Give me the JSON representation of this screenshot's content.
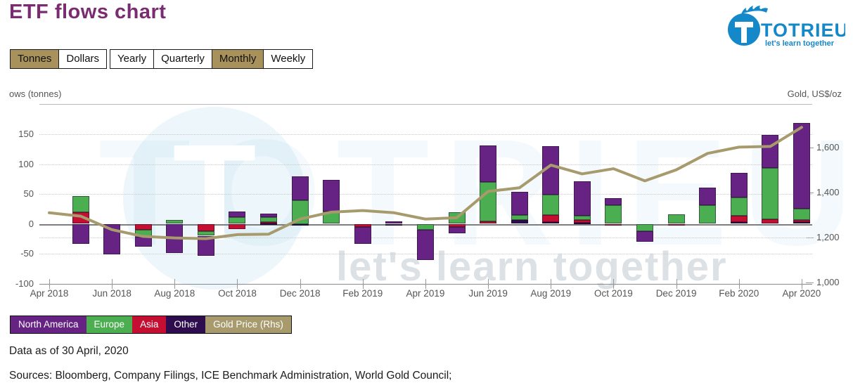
{
  "header": {
    "title": "ETF flows chart"
  },
  "logo": {
    "brand": "TOTRIEU",
    "tagline": "let's learn together",
    "color": "#1488c8"
  },
  "controls": {
    "selected_bg": "#a8915a",
    "unit_toggle": [
      {
        "label": "Tonnes",
        "selected": true
      },
      {
        "label": "Dollars",
        "selected": false
      }
    ],
    "period_toggle": [
      {
        "label": "Yearly",
        "selected": false
      },
      {
        "label": "Quarterly",
        "selected": false
      },
      {
        "label": "Monthly",
        "selected": true
      },
      {
        "label": "Weekly",
        "selected": false
      }
    ]
  },
  "footer": {
    "data_as_of": "Data as of 30 April, 2020",
    "sources": "Sources: Bloomberg, Company Filings, ICE Benchmark Administration, World Gold Council;"
  },
  "watermark": {
    "tagline": "let's learn together",
    "brand": "TOTRIEU"
  },
  "chart_data": {
    "type": "bar",
    "subtype": "stacked-bars-with-line",
    "title": "ETF flows chart",
    "grid": "dotted-horizontal",
    "legend_position": "bottom-left",
    "left_axis": {
      "label": "ows (tonnes)",
      "ticks": [
        150,
        100,
        50,
        0,
        -50,
        -100
      ],
      "range": [
        -100,
        200
      ]
    },
    "right_axis": {
      "label": "Gold, US$/oz",
      "ticks": [
        1600,
        1400,
        1200,
        1000
      ],
      "tick_labels": [
        "1,600",
        "1,400",
        "1,200",
        "1,000"
      ],
      "range": [
        1000,
        1795
      ]
    },
    "categories": [
      "Apr 2018",
      "May 2018",
      "Jun 2018",
      "Jul 2018",
      "Aug 2018",
      "Sep 2018",
      "Oct 2018",
      "Nov 2018",
      "Dec 2018",
      "Jan 2019",
      "Feb 2019",
      "Mar 2019",
      "Apr 2019",
      "May 2019",
      "Jun 2019",
      "Jul 2019",
      "Aug 2019",
      "Sep 2019",
      "Oct 2019",
      "Nov 2019",
      "Dec 2019",
      "Jan 2020",
      "Feb 2020",
      "Mar 2020",
      "Apr 2020"
    ],
    "x_tick_labels": [
      "Apr 2018",
      "Jun 2018",
      "Aug 2018",
      "Oct 2018",
      "Dec 2018",
      "Feb 2019",
      "Apr 2019",
      "Jun 2019",
      "Aug 2019",
      "Oct 2019",
      "Dec 2019",
      "Feb 2020",
      "Apr 2020"
    ],
    "series": [
      {
        "name": "North America",
        "type": "bar",
        "axis": "left",
        "color": "#662383",
        "values": [
          0,
          -33,
          -51,
          -16,
          -49,
          -33,
          10,
          6,
          40,
          52,
          -29,
          4,
          -50,
          -11,
          61,
          39,
          81,
          58,
          12,
          -18,
          0,
          30,
          41,
          56,
          144
        ]
      },
      {
        "name": "Europe",
        "type": "bar",
        "axis": "left",
        "color": "#4bae50",
        "values": [
          0,
          27,
          0,
          -12,
          6,
          -8,
          11,
          8,
          40,
          21,
          0,
          0,
          -10,
          19,
          66,
          9,
          34,
          6,
          31,
          -12,
          16,
          31,
          31,
          85,
          18
        ]
      },
      {
        "name": "Asia",
        "type": "bar",
        "axis": "left",
        "color": "#c40f33",
        "values": [
          0,
          19,
          0,
          -10,
          0,
          -12,
          -9,
          2,
          0,
          0,
          -5,
          0,
          0,
          -5,
          4,
          0,
          12,
          5,
          -2,
          0,
          -3,
          0,
          10,
          8,
          4
        ]
      },
      {
        "name": "Other",
        "type": "bar",
        "axis": "left",
        "color": "#2e0d4e",
        "values": [
          0,
          0,
          0,
          0,
          0,
          0,
          0,
          1,
          -2,
          0,
          0,
          -2,
          0,
          0,
          0,
          6,
          3,
          2,
          0,
          0,
          0,
          0,
          3,
          0,
          3
        ]
      },
      {
        "name": "Gold Price (Rhs)",
        "type": "line",
        "axis": "right",
        "color": "#a79b6d",
        "values": [
          1310,
          1295,
          1235,
          1205,
          1198,
          1195,
          1213,
          1215,
          1282,
          1313,
          1320,
          1310,
          1282,
          1288,
          1405,
          1421,
          1522,
          1483,
          1506,
          1452,
          1501,
          1574,
          1602,
          1605,
          1690
        ]
      }
    ],
    "legend": [
      {
        "label": "North America",
        "color": "#662383"
      },
      {
        "label": "Europe",
        "color": "#4bae50"
      },
      {
        "label": "Asia",
        "color": "#c40f33"
      },
      {
        "label": "Other",
        "color": "#2e0d4e"
      },
      {
        "label": "Gold Price (Rhs)",
        "color": "#a79b6d"
      }
    ]
  }
}
